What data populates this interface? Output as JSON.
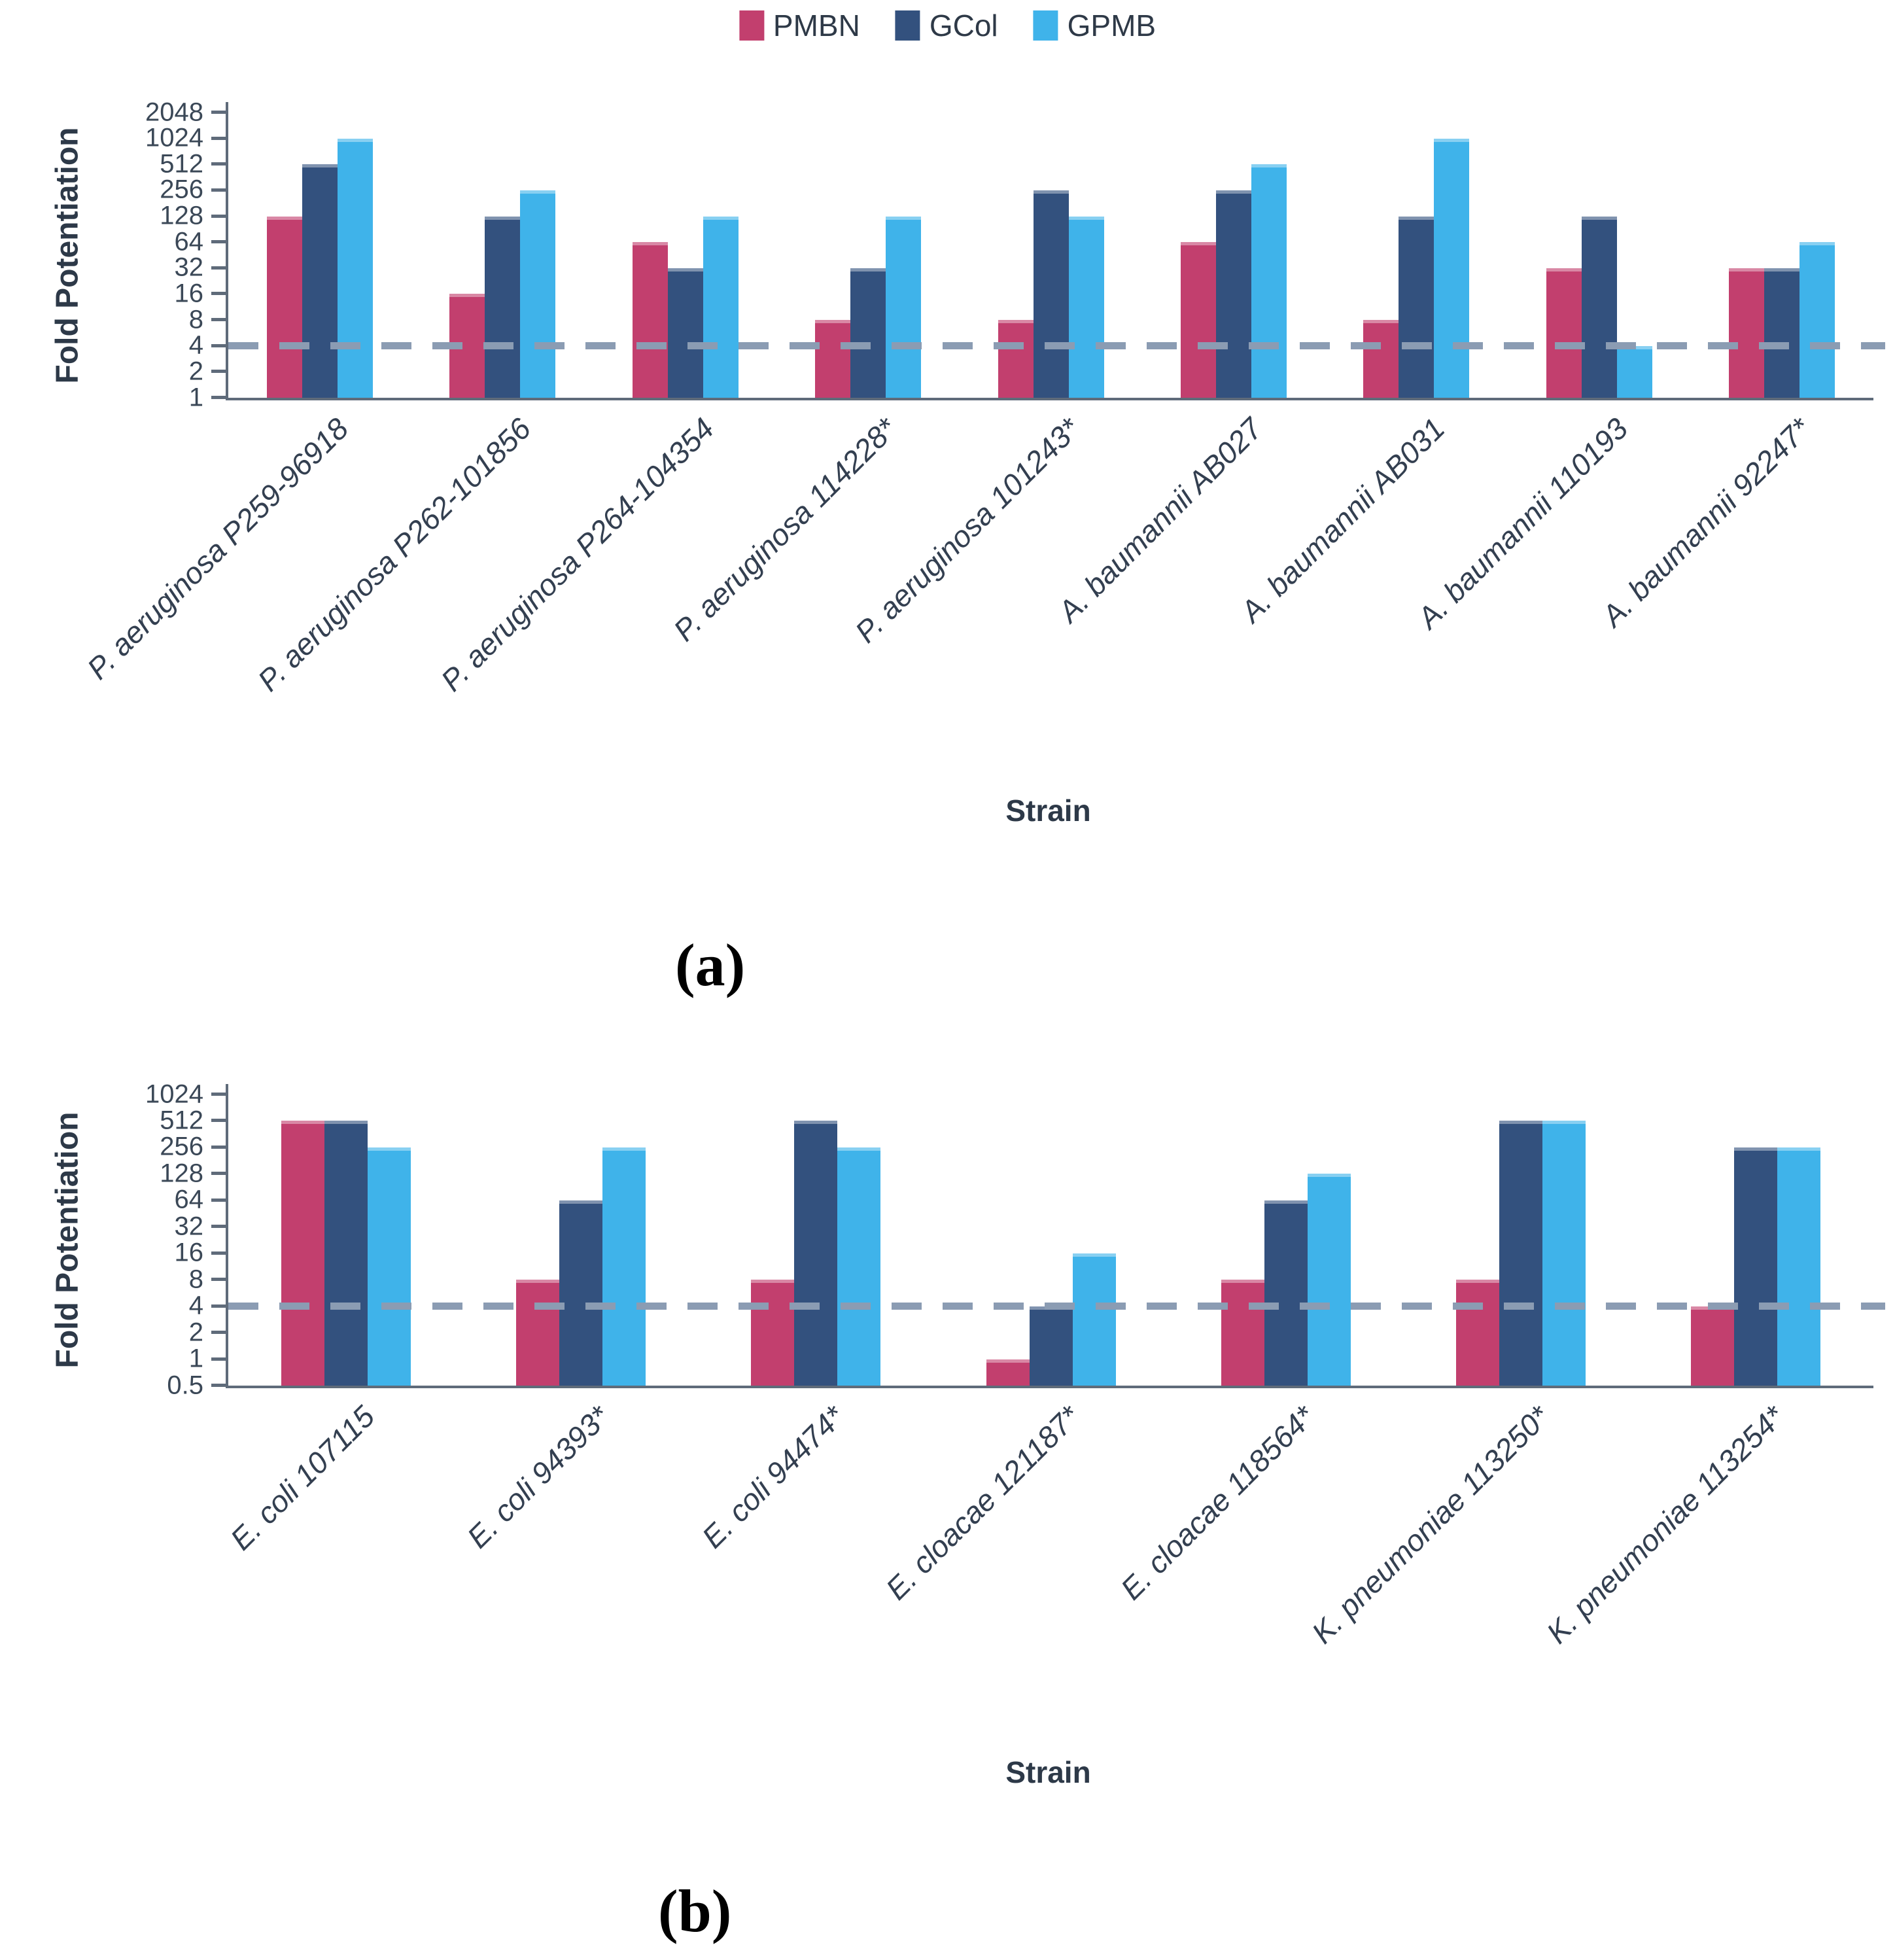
{
  "figure": {
    "panel_a_caption": "(a)",
    "panel_b_caption": "(b)"
  },
  "legend": {
    "items": [
      {
        "label": "PMBN",
        "color": "#c23f6e"
      },
      {
        "label": "GCol",
        "color": "#33517e"
      },
      {
        "label": "GPMB",
        "color": "#3fb3ea"
      }
    ]
  },
  "threshold_color": "#8b9cb3",
  "chart_data": [
    {
      "type": "bar",
      "panel": "a",
      "title": "",
      "xlabel": "Strain",
      "ylabel": "Fold Potentiation",
      "scale": "log2",
      "grid": false,
      "legend_position": "top",
      "ymin": 1,
      "ymax": 2048,
      "ylim": [
        1,
        2048
      ],
      "yticks": [
        1,
        2,
        4,
        8,
        16,
        32,
        64,
        128,
        256,
        512,
        1024,
        2048
      ],
      "threshold": 4,
      "categories": [
        "P. aeruginosa P259-96918",
        "P. aeruginosa P262-101856",
        "P. aeruginosa P264-104354",
        "P. aeruginosa 114228*",
        "P. aeruginosa 101243*",
        "A. baumannii AB027",
        "A. baumannii AB031",
        "A. baumannii 110193",
        "A. baumannii 92247*"
      ],
      "series": [
        {
          "name": "PMBN",
          "values": [
            128,
            16,
            64,
            8,
            8,
            64,
            8,
            32,
            32
          ]
        },
        {
          "name": "GCol",
          "values": [
            512,
            128,
            32,
            32,
            256,
            256,
            128,
            128,
            32
          ]
        },
        {
          "name": "GPMB",
          "values": [
            1024,
            256,
            128,
            128,
            128,
            512,
            1024,
            4,
            64
          ]
        }
      ]
    },
    {
      "type": "bar",
      "panel": "b",
      "title": "",
      "xlabel": "Strain",
      "ylabel": "Fold Potentiation",
      "scale": "log2",
      "grid": false,
      "legend_position": "top",
      "ymin": 0.5,
      "ymax": 1024,
      "ylim": [
        0.5,
        1024
      ],
      "yticks": [
        0.5,
        1,
        2,
        4,
        8,
        16,
        32,
        64,
        128,
        256,
        512,
        1024
      ],
      "threshold": 4,
      "categories": [
        "E. coli 107115",
        "E. coli 94393*",
        "E. coli 94474*",
        "E. cloacae 121187*",
        "E. cloacae 118564*",
        "K. pneumoniae 113250*",
        "K. pneumoniae 113254*"
      ],
      "series": [
        {
          "name": "PMBN",
          "values": [
            512,
            8,
            8,
            1,
            8,
            8,
            4
          ]
        },
        {
          "name": "GCol",
          "values": [
            512,
            64,
            512,
            4,
            64,
            512,
            256
          ]
        },
        {
          "name": "GPMB",
          "values": [
            256,
            256,
            256,
            16,
            128,
            512,
            256
          ]
        }
      ]
    }
  ]
}
